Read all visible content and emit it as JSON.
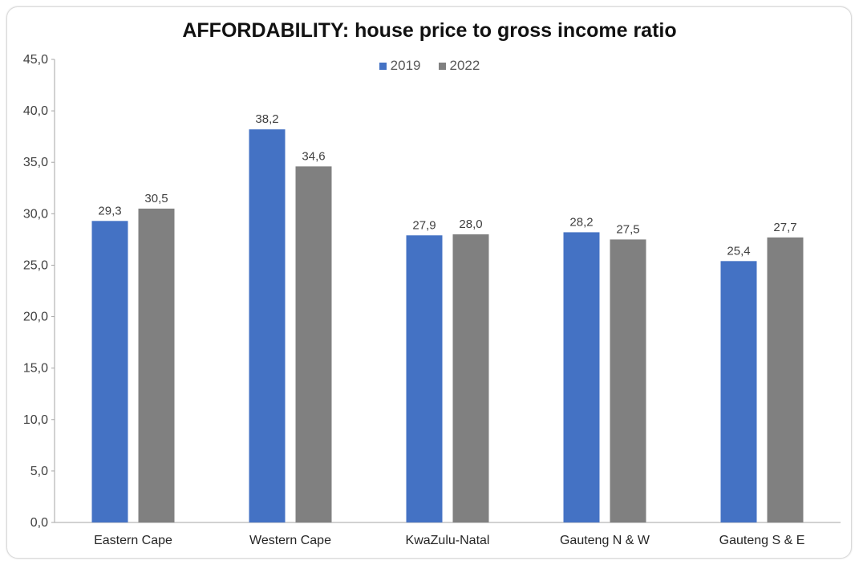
{
  "chart_data": {
    "type": "bar",
    "title": "AFFORDABILITY: house price to gross income ratio",
    "xlabel": "",
    "ylabel": "",
    "ylim": [
      0,
      45
    ],
    "yticks": [
      "0,0",
      "5,0",
      "10,0",
      "15,0",
      "20,0",
      "25,0",
      "30,0",
      "35,0",
      "40,0",
      "45,0"
    ],
    "categories": [
      "Eastern Cape",
      "Western Cape",
      "KwaZulu-Natal",
      "Gauteng N & W",
      "Gauteng S & E"
    ],
    "series": [
      {
        "name": "2019",
        "color": "#4472C4",
        "values": [
          29.3,
          38.2,
          27.9,
          28.2,
          25.4
        ],
        "labels": [
          "29,3",
          "38,2",
          "27,9",
          "28,2",
          "25,4"
        ]
      },
      {
        "name": "2022",
        "color": "#808080",
        "values": [
          30.5,
          34.6,
          28.0,
          27.5,
          27.7
        ],
        "labels": [
          "30,5",
          "34,6",
          "28,0",
          "27,5",
          "27,7"
        ]
      }
    ],
    "legend": "top-center",
    "grid": false
  }
}
